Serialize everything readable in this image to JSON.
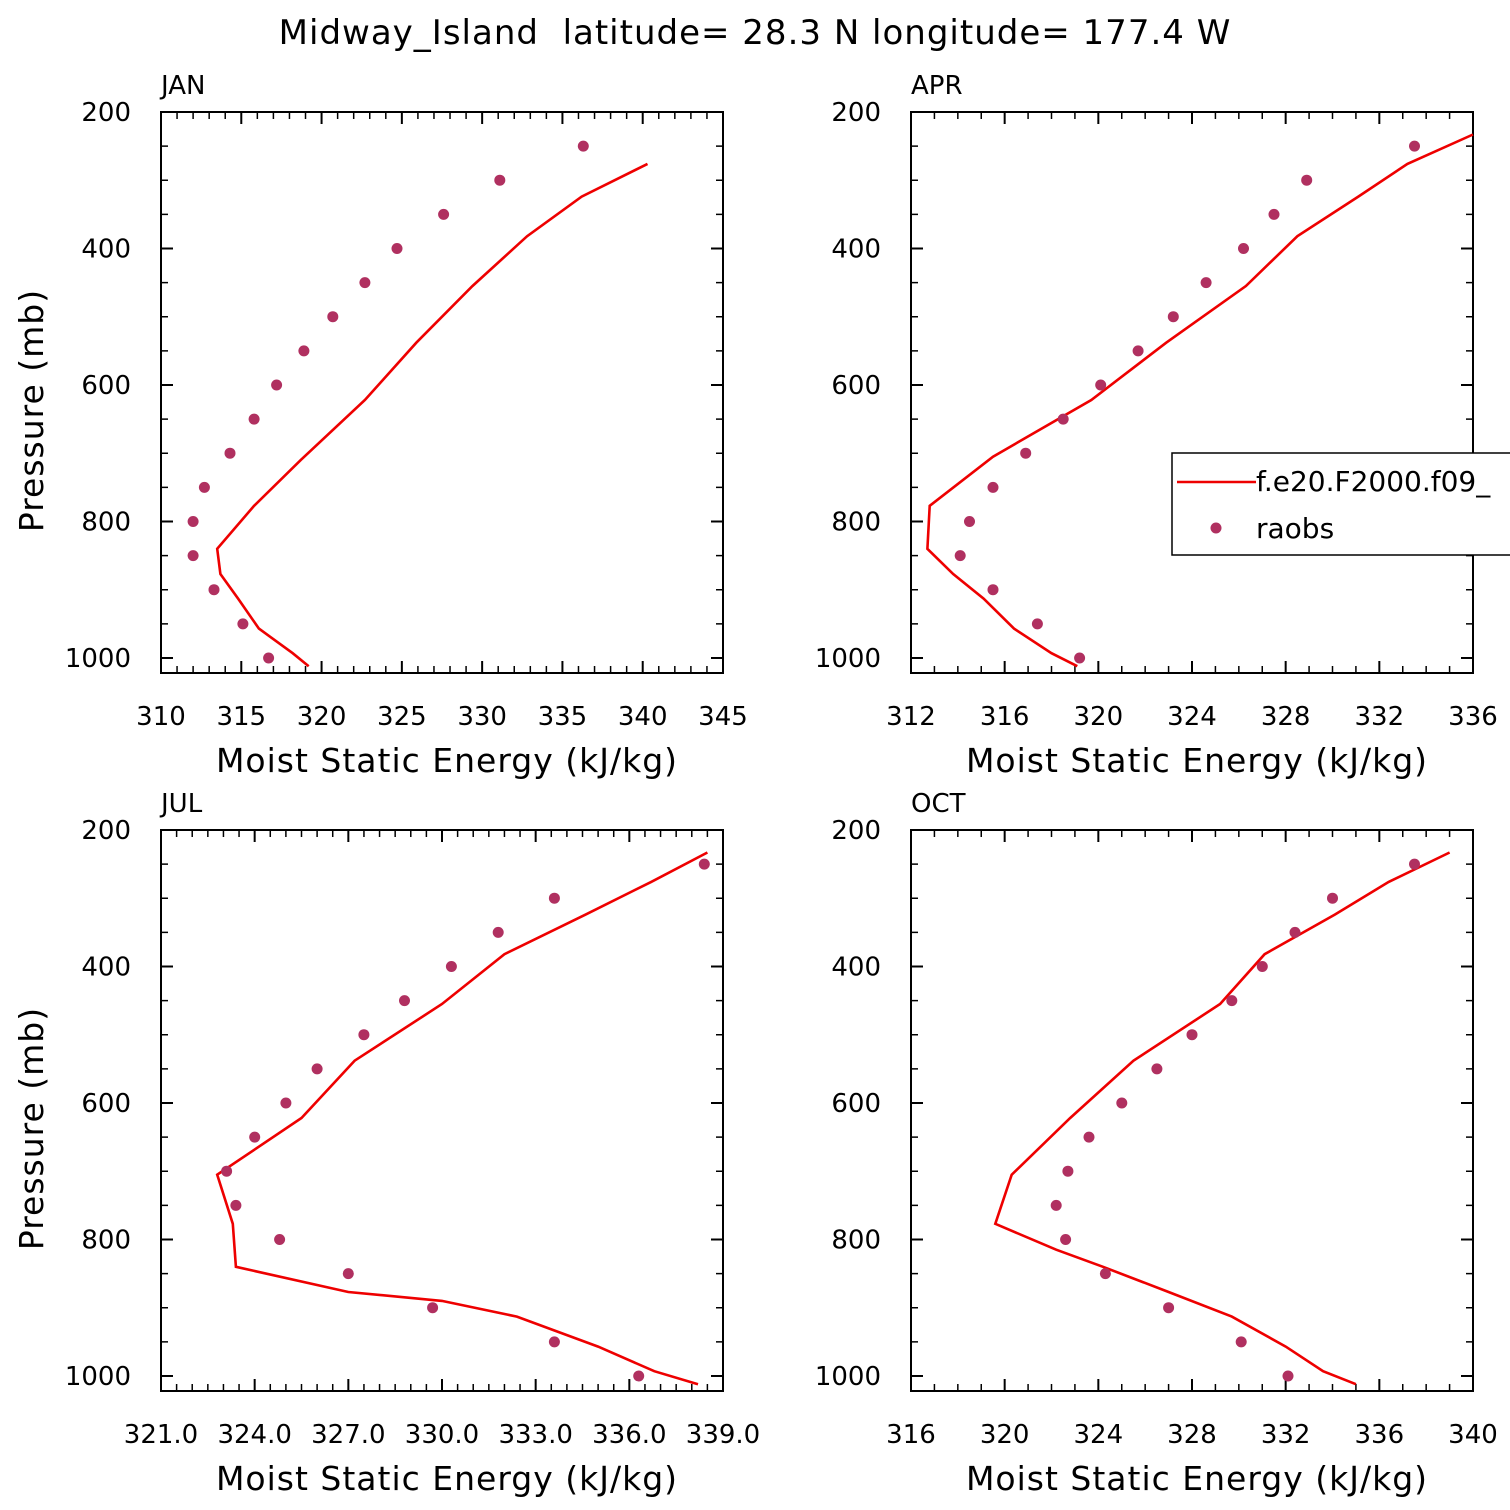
{
  "title": "Midway_Island  latitude= 28.3 N longitude= 177.4 W",
  "colors": {
    "model": "#ee0000",
    "obs": "#b03060",
    "axis": "#000000"
  },
  "legend": {
    "model_label": "f.e20.F2000.f09_",
    "obs_label": "raobs"
  },
  "chart_data": [
    {
      "type": "line",
      "panel": "JAN",
      "xlabel": "Moist Static Energy (kJ/kg)",
      "ylabel": "Pressure (mb)",
      "xlim": [
        310,
        345
      ],
      "ylim": [
        1000,
        200
      ],
      "xticks": [
        "310",
        "315",
        "320",
        "325",
        "330",
        "335",
        "340",
        "345"
      ],
      "yticks": [
        "200",
        "400",
        "600",
        "800",
        "1000"
      ],
      "grid": false,
      "series": [
        {
          "name": "f.e20.F2000.f09_",
          "kind": "line",
          "x": [
            319.2,
            318.2,
            316.1,
            314.8,
            313.7,
            313.5,
            315.8,
            318.7,
            322.7,
            325.9,
            329.4,
            332.8,
            336.2,
            340.3
          ],
          "y": [
            1012,
            993,
            957,
            913,
            877,
            840,
            777,
            710,
            622,
            538,
            455,
            382,
            324,
            276
          ]
        },
        {
          "name": "raobs",
          "kind": "scatter",
          "x": [
            316.7,
            315.1,
            313.3,
            312.0,
            312.0,
            312.7,
            314.3,
            315.8,
            317.2,
            318.9,
            320.7,
            322.7,
            324.7,
            327.6,
            331.1,
            336.3
          ],
          "y": [
            1000,
            950,
            900,
            850,
            800,
            750,
            700,
            650,
            600,
            550,
            500,
            450,
            400,
            350,
            300,
            250
          ]
        }
      ]
    },
    {
      "type": "line",
      "panel": "APR",
      "xlabel": "Moist Static Energy (kJ/kg)",
      "ylabel": "",
      "xlim": [
        312,
        336
      ],
      "ylim": [
        1000,
        200
      ],
      "xticks": [
        "312",
        "316",
        "320",
        "324",
        "328",
        "332",
        "336"
      ],
      "yticks": [
        "200",
        "400",
        "600",
        "800",
        "1000"
      ],
      "grid": false,
      "legend_position": "right",
      "series": [
        {
          "name": "f.e20.F2000.f09_",
          "kind": "line",
          "x": [
            319.1,
            318.0,
            316.4,
            315.1,
            313.8,
            312.7,
            312.8,
            315.5,
            319.7,
            322.9,
            326.3,
            328.5,
            331.1,
            333.2,
            336.0
          ],
          "y": [
            1012,
            993,
            957,
            913,
            877,
            840,
            777,
            705,
            622,
            538,
            455,
            382,
            324,
            276,
            233
          ]
        },
        {
          "name": "raobs",
          "kind": "scatter",
          "x": [
            319.2,
            317.4,
            315.5,
            314.1,
            314.5,
            315.5,
            316.9,
            318.5,
            320.1,
            321.7,
            323.2,
            324.6,
            326.2,
            327.5,
            328.9,
            333.5
          ],
          "y": [
            1000,
            950,
            900,
            850,
            800,
            750,
            700,
            650,
            600,
            550,
            500,
            450,
            400,
            350,
            300,
            250
          ]
        }
      ]
    },
    {
      "type": "line",
      "panel": "JUL",
      "xlabel": "Moist Static Energy (kJ/kg)",
      "ylabel": "Pressure (mb)",
      "xlim": [
        321.0,
        339.0
      ],
      "ylim": [
        1000,
        200
      ],
      "xticks": [
        "321.0",
        "324.0",
        "327.0",
        "330.0",
        "333.0",
        "336.0",
        "339.0"
      ],
      "yticks": [
        "200",
        "400",
        "600",
        "800",
        "1000"
      ],
      "grid": false,
      "series": [
        {
          "name": "f.e20.F2000.f09_",
          "kind": "line",
          "x": [
            338.2,
            336.8,
            335.0,
            332.4,
            330.0,
            327.0,
            323.4,
            323.3,
            322.8,
            325.5,
            327.2,
            330.0,
            332.0,
            334.6,
            336.7,
            338.5
          ],
          "y": [
            1012,
            993,
            957,
            913,
            890,
            877,
            840,
            777,
            705,
            622,
            538,
            455,
            382,
            324,
            276,
            233
          ]
        },
        {
          "name": "raobs",
          "kind": "scatter",
          "x": [
            336.3,
            333.6,
            329.7,
            327.0,
            324.8,
            323.4,
            323.1,
            324.0,
            325.0,
            326.0,
            327.5,
            328.8,
            330.3,
            331.8,
            333.6,
            338.4
          ],
          "y": [
            1000,
            950,
            900,
            850,
            800,
            750,
            700,
            650,
            600,
            550,
            500,
            450,
            400,
            350,
            300,
            250
          ]
        }
      ]
    },
    {
      "type": "line",
      "panel": "OCT",
      "xlabel": "Moist Static Energy (kJ/kg)",
      "ylabel": "",
      "xlim": [
        316,
        340
      ],
      "ylim": [
        1000,
        200
      ],
      "xticks": [
        "316",
        "320",
        "324",
        "328",
        "332",
        "336",
        "340"
      ],
      "yticks": [
        "200",
        "400",
        "600",
        "800",
        "1000"
      ],
      "grid": false,
      "series": [
        {
          "name": "f.e20.F2000.f09_",
          "kind": "line",
          "x": [
            335.0,
            333.6,
            332.0,
            329.7,
            327.0,
            324.2,
            322.2,
            319.6,
            320.3,
            322.8,
            325.5,
            329.2,
            331.1,
            334.1,
            336.4,
            339.0
          ],
          "y": [
            1012,
            993,
            957,
            913,
            877,
            840,
            815,
            777,
            705,
            622,
            538,
            455,
            382,
            324,
            276,
            233
          ]
        },
        {
          "name": "raobs",
          "kind": "scatter",
          "x": [
            332.1,
            330.1,
            327.0,
            324.3,
            322.6,
            322.2,
            322.7,
            323.6,
            325.0,
            326.5,
            328.0,
            329.7,
            331.0,
            332.4,
            334.0,
            337.5
          ],
          "y": [
            1000,
            950,
            900,
            850,
            800,
            750,
            700,
            650,
            600,
            550,
            500,
            450,
            400,
            350,
            300,
            250
          ]
        }
      ]
    }
  ]
}
